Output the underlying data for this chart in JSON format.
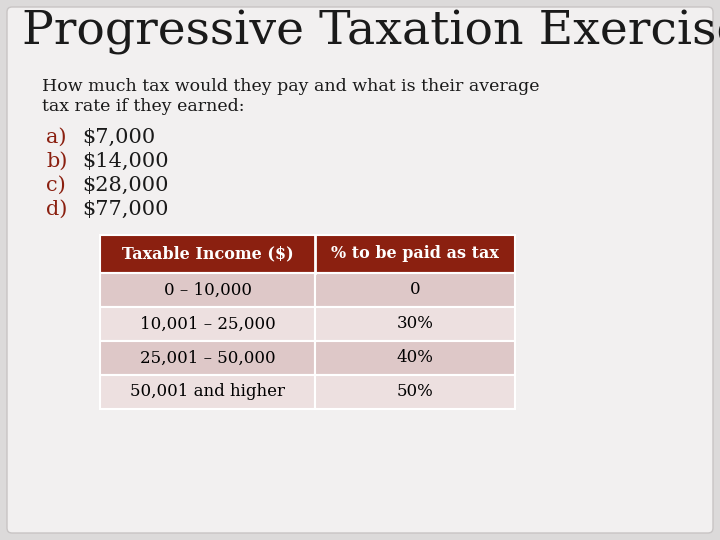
{
  "title": "Progressive Taxation Exercise",
  "subtitle_line1": "How much tax would they pay and what is their average",
  "subtitle_line2": "tax rate if they earned:",
  "list_items": [
    {
      "letter": "a)",
      "text": "$7,000"
    },
    {
      "letter": "b)",
      "text": "$14,000"
    },
    {
      "letter": "c)",
      "text": "$28,000"
    },
    {
      "letter": "d)",
      "text": "$77,000"
    }
  ],
  "table_headers": [
    "Taxable Income ($)",
    "% to be paid as tax"
  ],
  "table_rows": [
    [
      "0 – 10,000",
      "0"
    ],
    [
      "10,001 – 25,000",
      "30%"
    ],
    [
      "25,001 – 50,000",
      "40%"
    ],
    [
      "50,001 and higher",
      "50%"
    ]
  ],
  "header_bg_color": "#8B2010",
  "header_text_color": "#FFFFFF",
  "row_bg_1": "#DEC8C8",
  "row_bg_2": "#EDE0E0",
  "row_text_color": "#000000",
  "letter_color": "#8B2010",
  "text_color": "#1A1A1A",
  "bg_color": "#F2F0F0",
  "slide_bg": "#DCDADA",
  "title_fontsize": 34,
  "subtitle_fontsize": 12.5,
  "list_fontsize": 15,
  "table_header_fontsize": 11.5,
  "table_row_fontsize": 12
}
